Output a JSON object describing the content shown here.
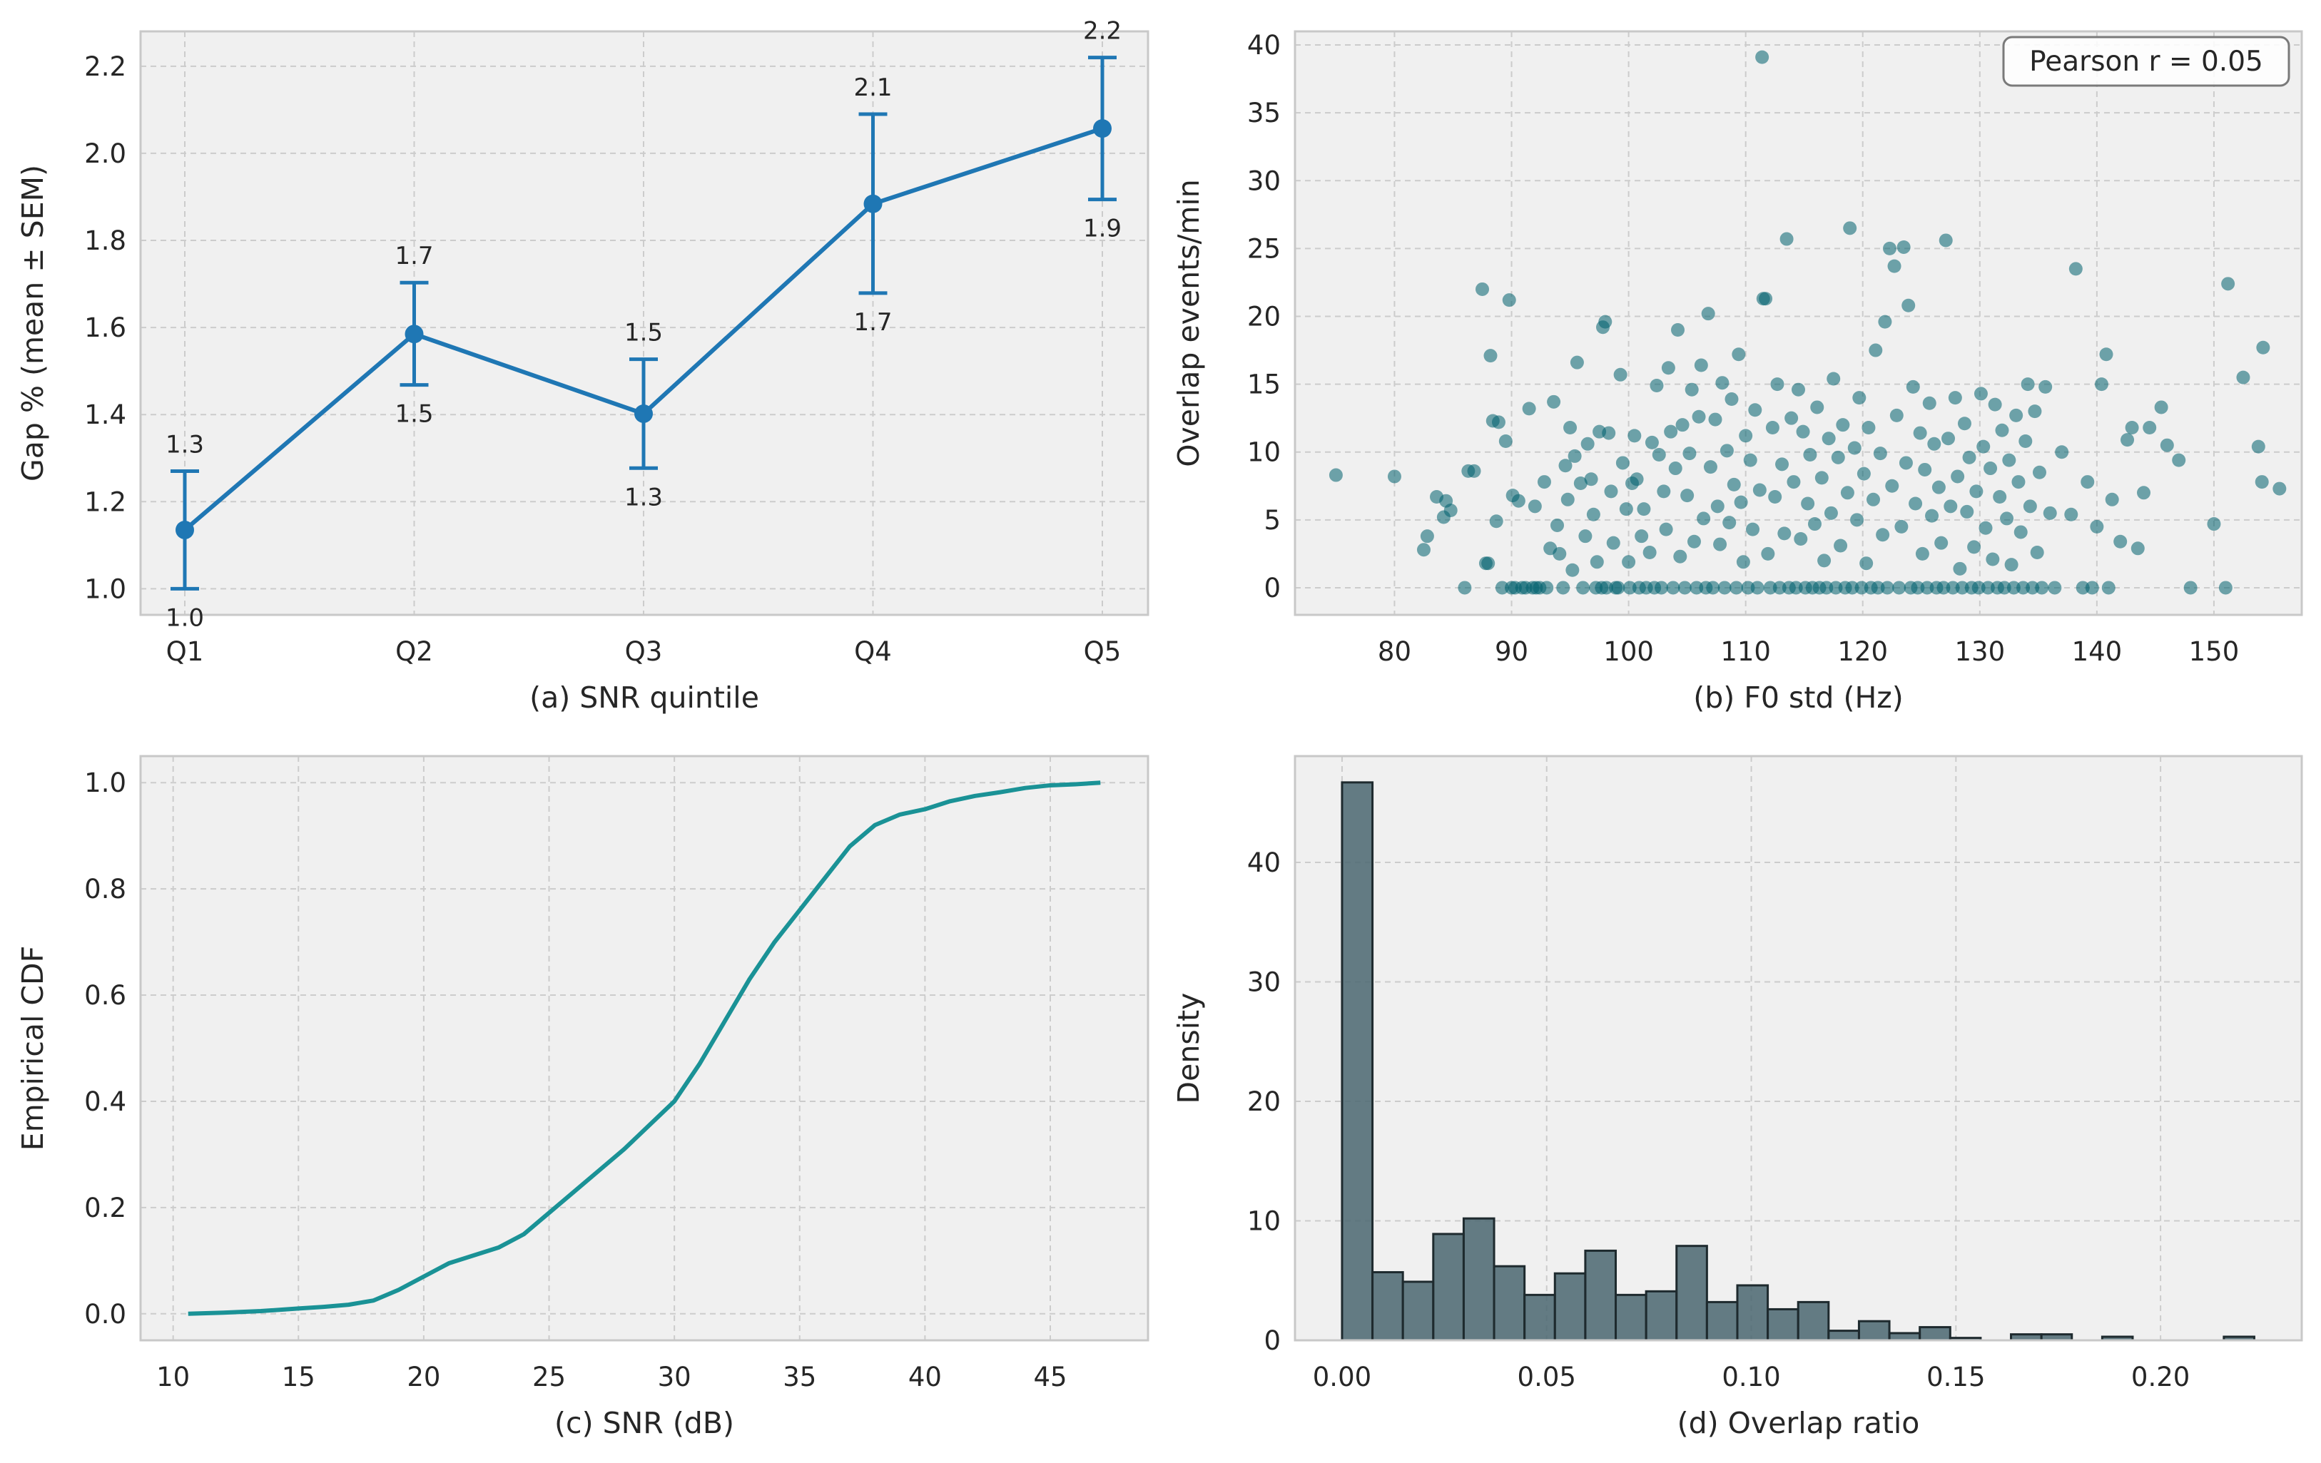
{
  "chart_data": [
    {
      "panel": "a",
      "type": "line",
      "xlabel": "(a) SNR quintile",
      "ylabel": "Gap % (mean ± SEM)",
      "categories": [
        "Q1",
        "Q2",
        "Q3",
        "Q4",
        "Q5"
      ],
      "values": [
        1.135,
        1.585,
        1.402,
        1.884,
        2.057
      ],
      "upper": [
        1.27,
        1.703,
        1.527,
        2.09,
        2.22
      ],
      "lower": [
        1.0,
        1.468,
        1.277,
        1.679,
        1.894
      ],
      "upper_labels": [
        "1.3",
        "1.7",
        "1.5",
        "2.1",
        "2.2"
      ],
      "lower_labels": [
        "1.0",
        "1.5",
        "1.3",
        "1.7",
        "1.9"
      ],
      "ylim": [
        0.94,
        2.28
      ],
      "yticks": [
        "1.0",
        "1.2",
        "1.4",
        "1.6",
        "1.8",
        "2.0",
        "2.2"
      ],
      "grid": true,
      "color": "#1f77b4"
    },
    {
      "panel": "b",
      "type": "scatter",
      "xlabel": "(b) F0 std (Hz)",
      "ylabel": "Overlap events/min",
      "annotation": "Pearson r = 0.05",
      "annotation_position": "top-right",
      "xlim": [
        71.5,
        157.5
      ],
      "ylim": [
        -2,
        41
      ],
      "xticks": [
        "80",
        "90",
        "100",
        "110",
        "120",
        "130",
        "140",
        "150"
      ],
      "yticks": [
        "0",
        "5",
        "10",
        "15",
        "20",
        "25",
        "30",
        "35",
        "40"
      ],
      "grid": true,
      "color": "#00606e",
      "points": [
        [
          75.0,
          8.3
        ],
        [
          80.0,
          8.2
        ],
        [
          82.5,
          2.8
        ],
        [
          82.8,
          3.8
        ],
        [
          83.6,
          6.7
        ],
        [
          84.2,
          5.2
        ],
        [
          84.4,
          6.4
        ],
        [
          84.8,
          5.7
        ],
        [
          86.0,
          0.0
        ],
        [
          86.3,
          8.6
        ],
        [
          86.8,
          8.6
        ],
        [
          87.5,
          22.0
        ],
        [
          87.8,
          1.8
        ],
        [
          88.0,
          1.8
        ],
        [
          88.2,
          17.1
        ],
        [
          88.4,
          12.3
        ],
        [
          88.7,
          4.9
        ],
        [
          88.9,
          12.2
        ],
        [
          89.2,
          0.0
        ],
        [
          89.5,
          10.8
        ],
        [
          89.8,
          21.2
        ],
        [
          90.0,
          0.0
        ],
        [
          90.1,
          6.8
        ],
        [
          90.3,
          0.0
        ],
        [
          90.6,
          6.4
        ],
        [
          90.9,
          0.0
        ],
        [
          91.2,
          0.0
        ],
        [
          91.5,
          13.2
        ],
        [
          91.8,
          0.0
        ],
        [
          92.0,
          6.0
        ],
        [
          92.1,
          0.0
        ],
        [
          92.4,
          0.0
        ],
        [
          92.8,
          7.8
        ],
        [
          93.0,
          0.0
        ],
        [
          93.3,
          2.9
        ],
        [
          93.6,
          13.7
        ],
        [
          93.9,
          4.6
        ],
        [
          94.1,
          2.5
        ],
        [
          94.4,
          0.0
        ],
        [
          94.6,
          9.0
        ],
        [
          94.8,
          6.5
        ],
        [
          95.0,
          11.8
        ],
        [
          95.2,
          1.3
        ],
        [
          95.4,
          9.7
        ],
        [
          95.6,
          16.6
        ],
        [
          95.9,
          7.7
        ],
        [
          96.1,
          0.0
        ],
        [
          96.3,
          3.8
        ],
        [
          96.5,
          10.6
        ],
        [
          96.8,
          8.0
        ],
        [
          97.0,
          5.4
        ],
        [
          97.2,
          0.0
        ],
        [
          97.3,
          1.9
        ],
        [
          97.5,
          11.5
        ],
        [
          97.7,
          0.0
        ],
        [
          97.8,
          19.2
        ],
        [
          98.0,
          19.6
        ],
        [
          98.1,
          0.0
        ],
        [
          98.3,
          11.4
        ],
        [
          98.5,
          7.1
        ],
        [
          98.7,
          3.3
        ],
        [
          98.9,
          0.0
        ],
        [
          99.1,
          0.0
        ],
        [
          99.3,
          15.7
        ],
        [
          99.5,
          9.2
        ],
        [
          99.8,
          5.8
        ],
        [
          100.0,
          1.9
        ],
        [
          100.1,
          0.0
        ],
        [
          100.3,
          7.7
        ],
        [
          100.5,
          11.2
        ],
        [
          100.7,
          8.0
        ],
        [
          100.9,
          0.0
        ],
        [
          101.1,
          3.8
        ],
        [
          101.3,
          5.8
        ],
        [
          101.5,
          0.0
        ],
        [
          101.8,
          2.6
        ],
        [
          102.0,
          10.7
        ],
        [
          102.2,
          0.0
        ],
        [
          102.4,
          14.9
        ],
        [
          102.6,
          9.8
        ],
        [
          102.8,
          0.0
        ],
        [
          103.0,
          7.1
        ],
        [
          103.2,
          4.3
        ],
        [
          103.4,
          16.2
        ],
        [
          103.6,
          11.5
        ],
        [
          103.8,
          0.0
        ],
        [
          104.0,
          8.8
        ],
        [
          104.2,
          19.0
        ],
        [
          104.4,
          2.3
        ],
        [
          104.6,
          12.0
        ],
        [
          104.8,
          0.0
        ],
        [
          105.0,
          6.8
        ],
        [
          105.2,
          9.9
        ],
        [
          105.4,
          14.6
        ],
        [
          105.6,
          3.4
        ],
        [
          105.8,
          0.0
        ],
        [
          106.0,
          12.6
        ],
        [
          106.2,
          16.4
        ],
        [
          106.4,
          5.1
        ],
        [
          106.6,
          0.0
        ],
        [
          106.8,
          20.2
        ],
        [
          107.0,
          8.9
        ],
        [
          107.2,
          0.0
        ],
        [
          107.4,
          12.4
        ],
        [
          107.6,
          6.0
        ],
        [
          107.8,
          3.2
        ],
        [
          108.0,
          15.1
        ],
        [
          108.2,
          0.0
        ],
        [
          108.4,
          10.1
        ],
        [
          108.6,
          4.8
        ],
        [
          108.8,
          13.9
        ],
        [
          109.0,
          7.6
        ],
        [
          109.2,
          0.0
        ],
        [
          109.4,
          17.2
        ],
        [
          109.6,
          6.3
        ],
        [
          109.8,
          1.9
        ],
        [
          110.0,
          11.2
        ],
        [
          110.2,
          0.0
        ],
        [
          110.4,
          9.4
        ],
        [
          110.6,
          4.3
        ],
        [
          110.8,
          13.1
        ],
        [
          111.0,
          0.0
        ],
        [
          111.2,
          7.2
        ],
        [
          111.4,
          39.1
        ],
        [
          111.5,
          21.3
        ],
        [
          111.7,
          21.3
        ],
        [
          111.9,
          2.5
        ],
        [
          112.1,
          0.0
        ],
        [
          112.3,
          11.8
        ],
        [
          112.5,
          6.7
        ],
        [
          112.7,
          15.0
        ],
        [
          112.9,
          0.0
        ],
        [
          113.1,
          9.1
        ],
        [
          113.3,
          4.0
        ],
        [
          113.5,
          25.7
        ],
        [
          113.7,
          0.0
        ],
        [
          113.9,
          12.5
        ],
        [
          114.1,
          7.8
        ],
        [
          114.3,
          0.0
        ],
        [
          114.5,
          14.6
        ],
        [
          114.7,
          3.6
        ],
        [
          114.9,
          11.5
        ],
        [
          115.1,
          0.0
        ],
        [
          115.3,
          6.2
        ],
        [
          115.5,
          9.8
        ],
        [
          115.7,
          0.0
        ],
        [
          115.9,
          4.7
        ],
        [
          116.1,
          13.3
        ],
        [
          116.3,
          0.0
        ],
        [
          116.5,
          8.1
        ],
        [
          116.7,
          2.0
        ],
        [
          116.9,
          0.0
        ],
        [
          117.1,
          11.0
        ],
        [
          117.3,
          5.5
        ],
        [
          117.5,
          15.4
        ],
        [
          117.7,
          0.0
        ],
        [
          117.9,
          9.6
        ],
        [
          118.1,
          3.1
        ],
        [
          118.3,
          12.0
        ],
        [
          118.5,
          0.0
        ],
        [
          118.7,
          7.0
        ],
        [
          118.9,
          26.5
        ],
        [
          119.1,
          0.0
        ],
        [
          119.3,
          10.3
        ],
        [
          119.5,
          5.0
        ],
        [
          119.7,
          14.0
        ],
        [
          119.9,
          0.0
        ],
        [
          120.1,
          8.4
        ],
        [
          120.3,
          1.8
        ],
        [
          120.5,
          11.8
        ],
        [
          120.7,
          0.0
        ],
        [
          120.9,
          6.5
        ],
        [
          121.1,
          17.5
        ],
        [
          121.3,
          0.0
        ],
        [
          121.5,
          9.9
        ],
        [
          121.7,
          3.9
        ],
        [
          121.9,
          19.6
        ],
        [
          122.1,
          0.0
        ],
        [
          122.3,
          25.0
        ],
        [
          122.5,
          7.5
        ],
        [
          122.7,
          23.7
        ],
        [
          122.9,
          12.7
        ],
        [
          123.1,
          0.0
        ],
        [
          123.3,
          4.5
        ],
        [
          123.5,
          25.1
        ],
        [
          123.7,
          9.2
        ],
        [
          123.9,
          20.8
        ],
        [
          124.1,
          0.0
        ],
        [
          124.3,
          14.8
        ],
        [
          124.5,
          6.2
        ],
        [
          124.7,
          0.0
        ],
        [
          124.9,
          11.4
        ],
        [
          125.1,
          2.5
        ],
        [
          125.3,
          8.7
        ],
        [
          125.5,
          0.0
        ],
        [
          125.7,
          13.6
        ],
        [
          125.9,
          5.3
        ],
        [
          126.1,
          10.6
        ],
        [
          126.3,
          0.0
        ],
        [
          126.5,
          7.4
        ],
        [
          126.7,
          3.3
        ],
        [
          126.9,
          0.0
        ],
        [
          127.1,
          25.6
        ],
        [
          127.3,
          11.0
        ],
        [
          127.5,
          6.0
        ],
        [
          127.7,
          0.0
        ],
        [
          127.9,
          14.0
        ],
        [
          128.1,
          8.2
        ],
        [
          128.3,
          1.4
        ],
        [
          128.5,
          0.0
        ],
        [
          128.7,
          12.1
        ],
        [
          128.9,
          5.6
        ],
        [
          129.1,
          9.6
        ],
        [
          129.3,
          0.0
        ],
        [
          129.5,
          3.0
        ],
        [
          129.7,
          7.1
        ],
        [
          129.9,
          0.0
        ],
        [
          130.1,
          14.3
        ],
        [
          130.3,
          10.4
        ],
        [
          130.5,
          4.4
        ],
        [
          130.7,
          0.0
        ],
        [
          130.9,
          8.8
        ],
        [
          131.1,
          2.1
        ],
        [
          131.3,
          13.5
        ],
        [
          131.5,
          0.0
        ],
        [
          131.7,
          6.7
        ],
        [
          131.9,
          11.6
        ],
        [
          132.1,
          0.0
        ],
        [
          132.3,
          5.1
        ],
        [
          132.5,
          9.4
        ],
        [
          132.7,
          1.7
        ],
        [
          132.9,
          0.0
        ],
        [
          133.1,
          12.7
        ],
        [
          133.3,
          7.8
        ],
        [
          133.5,
          4.1
        ],
        [
          133.7,
          0.0
        ],
        [
          133.9,
          10.8
        ],
        [
          134.1,
          15.0
        ],
        [
          134.3,
          6.0
        ],
        [
          134.5,
          0.0
        ],
        [
          134.7,
          13.0
        ],
        [
          134.9,
          2.6
        ],
        [
          135.1,
          8.5
        ],
        [
          135.3,
          0.0
        ],
        [
          135.6,
          14.8
        ],
        [
          136.0,
          5.5
        ],
        [
          136.4,
          0.0
        ],
        [
          137.0,
          10.0
        ],
        [
          137.8,
          5.4
        ],
        [
          138.2,
          23.5
        ],
        [
          138.8,
          0.0
        ],
        [
          139.2,
          7.8
        ],
        [
          139.6,
          0.0
        ],
        [
          140.0,
          4.5
        ],
        [
          140.4,
          15.0
        ],
        [
          140.8,
          17.2
        ],
        [
          141.0,
          0.0
        ],
        [
          141.3,
          6.5
        ],
        [
          142.0,
          3.4
        ],
        [
          142.6,
          10.9
        ],
        [
          143.0,
          11.8
        ],
        [
          143.5,
          2.9
        ],
        [
          144.0,
          7.0
        ],
        [
          144.5,
          11.8
        ],
        [
          145.5,
          13.3
        ],
        [
          146.0,
          10.5
        ],
        [
          147.0,
          9.4
        ],
        [
          148.0,
          0.0
        ],
        [
          150.0,
          4.7
        ],
        [
          151.0,
          0.0
        ],
        [
          151.2,
          22.4
        ],
        [
          152.5,
          15.5
        ],
        [
          153.8,
          10.4
        ],
        [
          154.1,
          7.8
        ],
        [
          154.2,
          17.7
        ],
        [
          155.6,
          7.3
        ]
      ]
    },
    {
      "panel": "c",
      "type": "line",
      "xlabel": "(c) SNR (dB)",
      "ylabel": "Empirical CDF",
      "xlim": [
        8.7,
        48.9
      ],
      "ylim": [
        -0.05,
        1.05
      ],
      "xticks": [
        "10",
        "15",
        "20",
        "25",
        "30",
        "35",
        "40",
        "45"
      ],
      "yticks": [
        "0.0",
        "0.2",
        "0.4",
        "0.6",
        "0.8",
        "1.0"
      ],
      "grid": true,
      "color": "#1a9296",
      "x": [
        10.6,
        12.0,
        13.5,
        15.0,
        16.0,
        17.0,
        18.0,
        19.0,
        20.0,
        21.0,
        22.0,
        23.0,
        24.0,
        25.0,
        26.0,
        27.0,
        28.0,
        29.0,
        30.0,
        31.0,
        32.0,
        33.0,
        34.0,
        35.0,
        36.0,
        37.0,
        38.0,
        39.0,
        40.0,
        41.0,
        42.0,
        43.0,
        44.0,
        45.0,
        46.0,
        47.0
      ],
      "y": [
        0.0,
        0.002,
        0.005,
        0.01,
        0.013,
        0.017,
        0.025,
        0.045,
        0.07,
        0.095,
        0.11,
        0.125,
        0.15,
        0.19,
        0.23,
        0.27,
        0.31,
        0.355,
        0.4,
        0.47,
        0.55,
        0.63,
        0.7,
        0.76,
        0.82,
        0.88,
        0.92,
        0.94,
        0.95,
        0.965,
        0.975,
        0.982,
        0.99,
        0.995,
        0.997,
        1.0
      ]
    },
    {
      "panel": "d",
      "type": "bar",
      "xlabel": "(d) Overlap ratio",
      "ylabel": "Density",
      "xlim": [
        -0.0115,
        0.2345
      ],
      "ylim": [
        0,
        48.9
      ],
      "xticks": [
        "0.00",
        "0.05",
        "0.10",
        "0.15",
        "0.20"
      ],
      "yticks": [
        "0",
        "10",
        "20",
        "30",
        "40"
      ],
      "grid": true,
      "color": "#4a6670",
      "bin_width": 0.00743,
      "bin_start": 0.0,
      "values": [
        46.7,
        5.7,
        4.9,
        8.9,
        10.2,
        6.2,
        3.8,
        5.6,
        7.5,
        3.8,
        4.1,
        7.9,
        3.2,
        4.6,
        2.6,
        3.2,
        0.8,
        1.6,
        0.6,
        1.1,
        0.2,
        0.0,
        0.5,
        0.5,
        0.0,
        0.3,
        0.0,
        0.0,
        0.0,
        0.3
      ]
    }
  ]
}
